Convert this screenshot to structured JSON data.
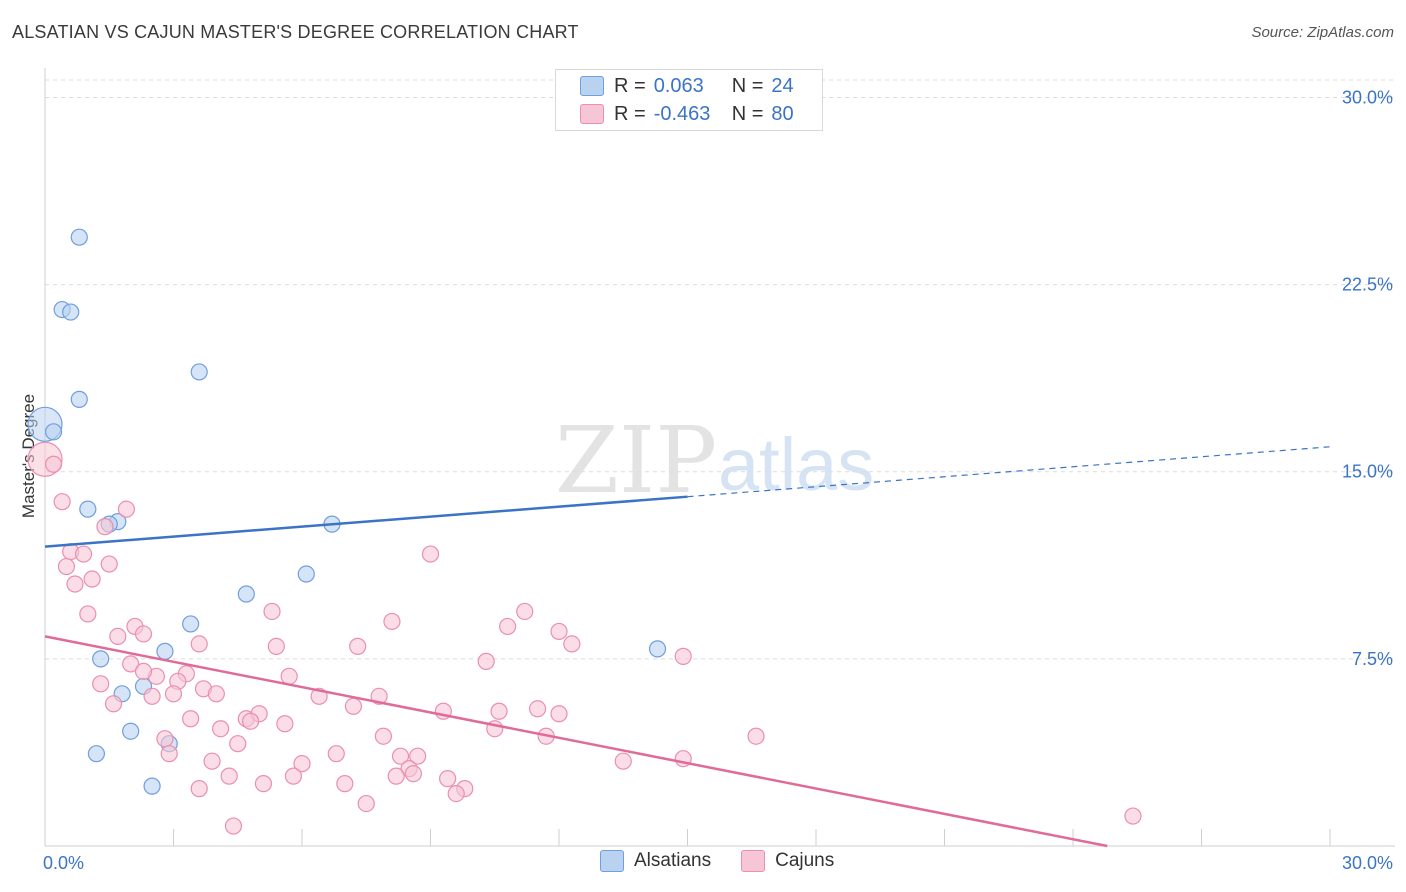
{
  "title": "ALSATIAN VS CAJUN MASTER'S DEGREE CORRELATION CHART",
  "source": "Source: ZipAtlas.com",
  "watermark": {
    "zip": "ZIP",
    "atlas": "atlas"
  },
  "colors": {
    "blue": "#3b74c6",
    "blue_fill": "#b9d2f0",
    "blue_stroke": "#6f9fdc",
    "pink": "#e06b98",
    "pink_fill": "#f7c6d6",
    "pink_stroke": "#ea8fb0",
    "grid": "#dcdcdc",
    "axis_label": "#3b74c6"
  },
  "legend": {
    "rows": [
      {
        "r_label": "R =",
        "r_value": "0.063",
        "n_label": "N =",
        "n_value": "24"
      },
      {
        "r_label": "R =",
        "r_value": "-0.463",
        "n_label": "N =",
        "n_value": "80"
      }
    ]
  },
  "bottom_legend": {
    "alsatians": "Alsatians",
    "cajuns": "Cajuns"
  },
  "chart_data": {
    "type": "scatter",
    "title": "ALSATIAN VS CAJUN MASTER'S DEGREE CORRELATION CHART",
    "xlabel": "",
    "ylabel": "Master's Degree",
    "xlim": [
      0,
      30
    ],
    "ylim": [
      0,
      30.7
    ],
    "x_tick_labels": [
      "0.0%",
      "30.0%"
    ],
    "y_ticks": [
      7.5,
      15.0,
      22.5,
      30.0
    ],
    "y_tick_labels": [
      "7.5%",
      "15.0%",
      "22.5%",
      "30.0%"
    ],
    "grid": true,
    "legend_position": "top-center",
    "series": [
      {
        "name": "Alsatians",
        "r": 0.063,
        "n": 24,
        "trend": {
          "x0": 0,
          "y0": 12.0,
          "x1": 15,
          "y1": 14.0,
          "dashed_to_x": 30,
          "dashed_to_y": 16.0
        },
        "points": [
          [
            0.0,
            16.9,
            1
          ],
          [
            0.2,
            16.6,
            0
          ],
          [
            0.8,
            24.4,
            0
          ],
          [
            0.4,
            21.5,
            0
          ],
          [
            0.6,
            21.4,
            0
          ],
          [
            0.8,
            17.9,
            0
          ],
          [
            3.6,
            19.0,
            0
          ],
          [
            1.0,
            13.5,
            0
          ],
          [
            1.7,
            13.0,
            0
          ],
          [
            1.5,
            12.9,
            0
          ],
          [
            6.7,
            12.9,
            0
          ],
          [
            6.1,
            10.9,
            0
          ],
          [
            4.7,
            10.1,
            0
          ],
          [
            3.4,
            8.9,
            0
          ],
          [
            13.0,
            30.0,
            0
          ],
          [
            14.3,
            7.9,
            0
          ],
          [
            1.3,
            7.5,
            0
          ],
          [
            2.8,
            7.8,
            0
          ],
          [
            1.8,
            6.1,
            0
          ],
          [
            2.3,
            6.4,
            0
          ],
          [
            2.0,
            4.6,
            0
          ],
          [
            1.2,
            3.7,
            0
          ],
          [
            2.9,
            4.1,
            0
          ],
          [
            2.5,
            2.4,
            0
          ]
        ]
      },
      {
        "name": "Cajuns",
        "r": -0.463,
        "n": 80,
        "trend": {
          "x0": 0,
          "y0": 8.4,
          "x1": 24.8,
          "y1": 0.0
        },
        "points": [
          [
            0.0,
            15.5,
            1
          ],
          [
            0.2,
            15.3,
            0
          ],
          [
            0.4,
            13.8,
            0
          ],
          [
            1.9,
            13.5,
            0
          ],
          [
            1.4,
            12.8,
            0
          ],
          [
            0.6,
            11.8,
            0
          ],
          [
            0.9,
            11.7,
            0
          ],
          [
            0.5,
            11.2,
            0
          ],
          [
            1.5,
            11.3,
            0
          ],
          [
            0.7,
            10.5,
            0
          ],
          [
            1.1,
            10.7,
            0
          ],
          [
            9.0,
            11.7,
            0
          ],
          [
            1.0,
            9.3,
            0
          ],
          [
            5.3,
            9.4,
            0
          ],
          [
            11.2,
            9.4,
            0
          ],
          [
            8.1,
            9.0,
            0
          ],
          [
            10.8,
            8.8,
            0
          ],
          [
            12.0,
            8.6,
            0
          ],
          [
            2.1,
            8.8,
            0
          ],
          [
            2.3,
            8.5,
            0
          ],
          [
            1.7,
            8.4,
            0
          ],
          [
            3.6,
            8.1,
            0
          ],
          [
            5.4,
            8.0,
            0
          ],
          [
            7.3,
            8.0,
            0
          ],
          [
            12.3,
            8.1,
            0
          ],
          [
            14.9,
            7.6,
            0
          ],
          [
            10.3,
            7.4,
            0
          ],
          [
            2.0,
            7.3,
            0
          ],
          [
            2.6,
            6.8,
            0
          ],
          [
            3.3,
            6.9,
            0
          ],
          [
            2.3,
            7.0,
            0
          ],
          [
            5.7,
            6.8,
            0
          ],
          [
            3.1,
            6.6,
            0
          ],
          [
            1.3,
            6.5,
            0
          ],
          [
            3.7,
            6.3,
            0
          ],
          [
            3.0,
            6.1,
            0
          ],
          [
            2.5,
            6.0,
            0
          ],
          [
            4.0,
            6.1,
            0
          ],
          [
            6.4,
            6.0,
            0
          ],
          [
            7.8,
            6.0,
            0
          ],
          [
            1.6,
            5.7,
            0
          ],
          [
            7.2,
            5.6,
            0
          ],
          [
            9.3,
            5.4,
            0
          ],
          [
            10.6,
            5.4,
            0
          ],
          [
            11.5,
            5.5,
            0
          ],
          [
            12.0,
            5.3,
            0
          ],
          [
            3.4,
            5.1,
            0
          ],
          [
            4.7,
            5.1,
            0
          ],
          [
            5.0,
            5.3,
            0
          ],
          [
            4.8,
            5.0,
            0
          ],
          [
            5.6,
            4.9,
            0
          ],
          [
            4.1,
            4.7,
            0
          ],
          [
            10.5,
            4.7,
            0
          ],
          [
            7.9,
            4.4,
            0
          ],
          [
            11.7,
            4.4,
            0
          ],
          [
            16.6,
            4.4,
            0
          ],
          [
            2.8,
            4.3,
            0
          ],
          [
            4.5,
            4.1,
            0
          ],
          [
            2.9,
            3.7,
            0
          ],
          [
            6.8,
            3.7,
            0
          ],
          [
            8.3,
            3.6,
            0
          ],
          [
            8.7,
            3.6,
            0
          ],
          [
            14.9,
            3.5,
            0
          ],
          [
            3.9,
            3.4,
            0
          ],
          [
            6.0,
            3.3,
            0
          ],
          [
            13.5,
            3.4,
            0
          ],
          [
            8.5,
            3.1,
            0
          ],
          [
            4.3,
            2.8,
            0
          ],
          [
            5.8,
            2.8,
            0
          ],
          [
            8.2,
            2.8,
            0
          ],
          [
            8.6,
            2.9,
            0
          ],
          [
            9.4,
            2.7,
            0
          ],
          [
            5.1,
            2.5,
            0
          ],
          [
            7.0,
            2.5,
            0
          ],
          [
            3.6,
            2.3,
            0
          ],
          [
            9.8,
            2.3,
            0
          ],
          [
            9.6,
            2.1,
            0
          ],
          [
            7.5,
            1.7,
            0
          ],
          [
            4.4,
            0.8,
            0
          ],
          [
            25.4,
            1.2,
            0
          ]
        ]
      }
    ]
  }
}
